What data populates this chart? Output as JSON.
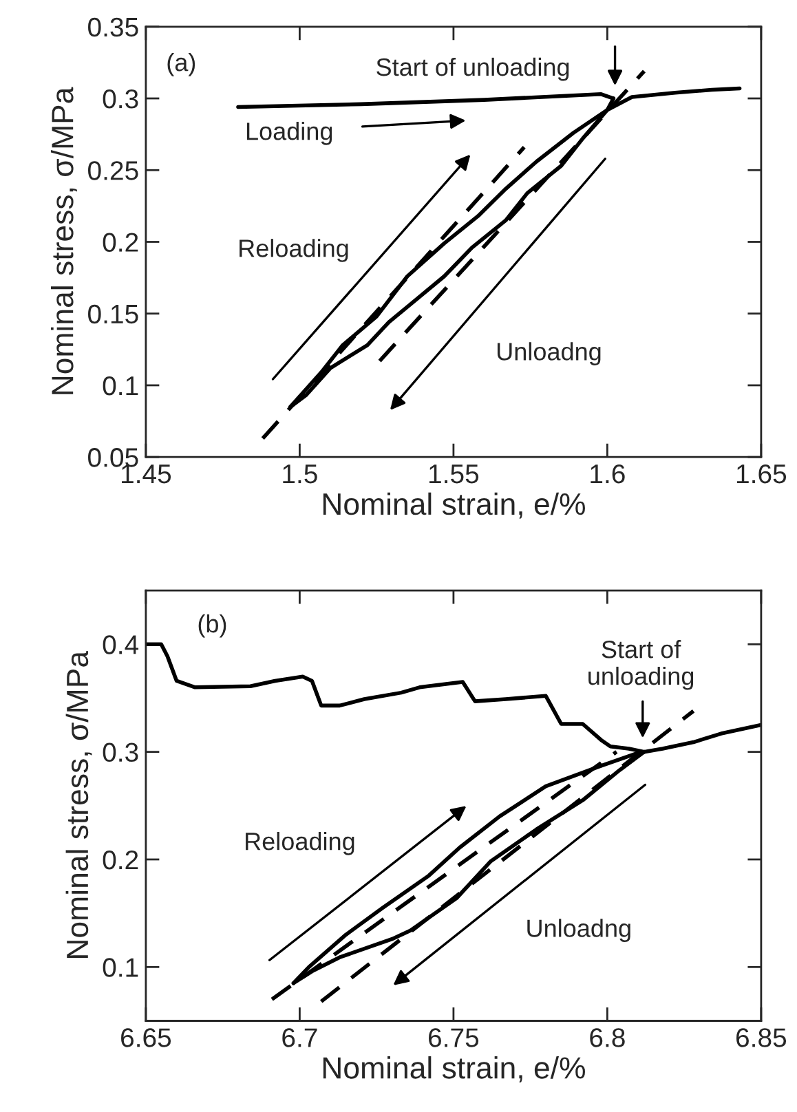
{
  "chart_data": [
    {
      "type": "line",
      "xlabel": "Nominal strain, e/%",
      "ylabel": "Nominal stress, σ/MPa",
      "xlim": [
        1.45,
        1.65
      ],
      "ylim": [
        0.05,
        0.35
      ],
      "xticks": [
        1.45,
        1.5,
        1.55,
        1.6,
        1.65
      ],
      "yticks": [
        0.05,
        0.1,
        0.15,
        0.2,
        0.25,
        0.3,
        0.35
      ],
      "series": [
        {
          "type": "line",
          "color": "#000000",
          "line_style": "solid",
          "x": [
            1.48,
            1.52,
            1.56,
            1.598,
            1.602
          ],
          "values": [
            0.294,
            0.296,
            0.299,
            0.303,
            0.3
          ]
        },
        {
          "type": "line",
          "color": "#000000",
          "line_style": "solid",
          "x": [
            1.602,
            1.6,
            1.592,
            1.585,
            1.574,
            1.567,
            1.556,
            1.547,
            1.538,
            1.529,
            1.522,
            1.51,
            1.502,
            1.497
          ],
          "values": [
            0.3,
            0.292,
            0.272,
            0.253,
            0.234,
            0.215,
            0.196,
            0.176,
            0.16,
            0.144,
            0.128,
            0.112,
            0.093,
            0.085
          ]
        },
        {
          "type": "line",
          "color": "#000000",
          "line_style": "solid",
          "x": [
            1.497,
            1.507,
            1.514,
            1.525,
            1.535,
            1.547,
            1.558,
            1.567,
            1.577,
            1.589,
            1.6,
            1.608,
            1.622,
            1.634,
            1.643
          ],
          "values": [
            0.085,
            0.109,
            0.128,
            0.148,
            0.176,
            0.199,
            0.218,
            0.237,
            0.256,
            0.276,
            0.292,
            0.301,
            0.304,
            0.306,
            0.307
          ]
        },
        {
          "type": "line",
          "color": "#000000",
          "line_style": "dashed",
          "x": [
            1.488,
            1.573
          ],
          "values": [
            0.063,
            0.266
          ]
        },
        {
          "type": "line",
          "color": "#000000",
          "line_style": "dashed",
          "x": [
            1.526,
            1.612
          ],
          "values": [
            0.117,
            0.319
          ]
        }
      ],
      "annotations": [
        "(a)",
        "Start of unloading",
        "Loading",
        "Reloading",
        "Unloadng"
      ]
    },
    {
      "type": "line",
      "xlabel": "Nominal strain, e/%",
      "ylabel": "Nominal stress, σ/MPa",
      "xlim": [
        6.65,
        6.85
      ],
      "ylim": [
        0.05,
        0.45
      ],
      "xticks": [
        6.65,
        6.7,
        6.75,
        6.8,
        6.85
      ],
      "yticks": [
        0.1,
        0.2,
        0.3,
        0.4
      ],
      "series": [
        {
          "type": "line",
          "color": "#000000",
          "line_style": "solid",
          "x": [
            6.65,
            6.655,
            6.657,
            6.66,
            6.666,
            6.684,
            6.692,
            6.701,
            6.704,
            6.707,
            6.713,
            6.721,
            6.733,
            6.739,
            6.753,
            6.757,
            6.767,
            6.78,
            6.785,
            6.792,
            6.798,
            6.801,
            6.807,
            6.812
          ],
          "values": [
            0.4,
            0.4,
            0.389,
            0.366,
            0.36,
            0.361,
            0.366,
            0.37,
            0.366,
            0.343,
            0.343,
            0.349,
            0.355,
            0.36,
            0.365,
            0.347,
            0.349,
            0.352,
            0.326,
            0.326,
            0.311,
            0.305,
            0.303,
            0.3
          ]
        },
        {
          "type": "line",
          "color": "#000000",
          "line_style": "solid",
          "x": [
            6.812,
            6.804,
            6.792,
            6.777,
            6.762,
            6.751,
            6.736,
            6.73,
            6.713,
            6.704,
            6.698
          ],
          "values": [
            0.3,
            0.283,
            0.255,
            0.228,
            0.198,
            0.164,
            0.134,
            0.126,
            0.109,
            0.096,
            0.085
          ]
        },
        {
          "type": "line",
          "color": "#000000",
          "line_style": "solid",
          "x": [
            6.698,
            6.703,
            6.715,
            6.727,
            6.742,
            6.752,
            6.765,
            6.78,
            6.798,
            6.81,
            6.818,
            6.828,
            6.837,
            6.85
          ],
          "values": [
            0.085,
            0.1,
            0.13,
            0.155,
            0.185,
            0.211,
            0.24,
            0.268,
            0.287,
            0.299,
            0.303,
            0.309,
            0.317,
            0.325
          ]
        },
        {
          "type": "line",
          "color": "#000000",
          "line_style": "dashed",
          "x": [
            6.691,
            6.803
          ],
          "values": [
            0.07,
            0.3
          ]
        },
        {
          "type": "line",
          "color": "#000000",
          "line_style": "dashed",
          "x": [
            6.707,
            6.828
          ],
          "values": [
            0.068,
            0.338
          ]
        }
      ],
      "annotations": [
        "(b)",
        "Start of\nunloading",
        "Reloading",
        "Unloadng"
      ]
    }
  ]
}
